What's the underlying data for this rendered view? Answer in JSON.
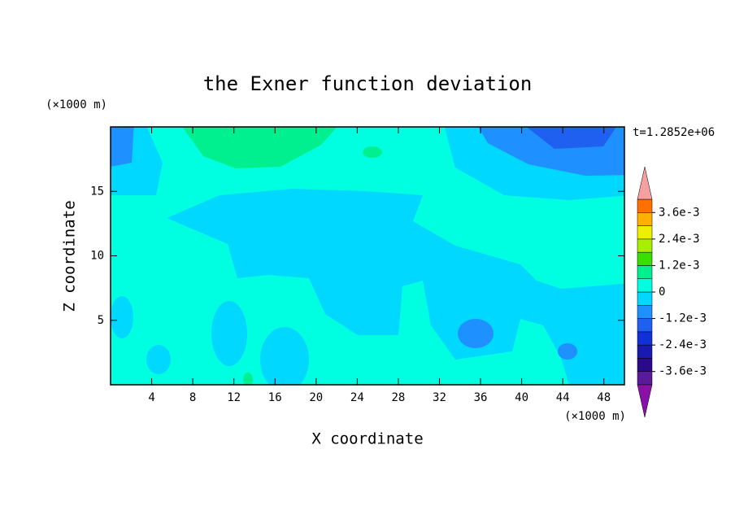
{
  "chart_data": {
    "type": "contour",
    "title": "the Exner function deviation",
    "xlabel": "X coordinate",
    "ylabel": "Z coordinate",
    "xunit": "(×1000 m)",
    "yunit": "(×1000 m)",
    "annotation": "t=1.2852e+06",
    "xlim": [
      0,
      50
    ],
    "ylim": [
      0,
      20
    ],
    "xticks": [
      4,
      8,
      12,
      16,
      20,
      24,
      28,
      32,
      36,
      40,
      44,
      48
    ],
    "yticks": [
      5,
      10,
      15
    ],
    "colorbar": {
      "levels": [
        -0.0042,
        -0.0036,
        -0.003,
        -0.0024,
        -0.0018,
        -0.0012,
        -0.0006,
        0,
        0.0006,
        0.0012,
        0.0018,
        0.0024,
        0.003,
        0.0036,
        0.0042
      ],
      "colors": [
        "#5a1a9a",
        "#2a0a8a",
        "#1a1ab0",
        "#1030d8",
        "#2060f0",
        "#1e90ff",
        "#00d8ff",
        "#00ffe0",
        "#00f090",
        "#38e000",
        "#a8ee00",
        "#eef000",
        "#ffb000",
        "#ff7000",
        "#ff2a10"
      ],
      "extend_colors": [
        "#8a10a8",
        "#f4a0a0"
      ],
      "ticks": [
        {
          "value": 0.0036,
          "label": "3.6e-3"
        },
        {
          "value": 0.0024,
          "label": "2.4e-3"
        },
        {
          "value": 0.0012,
          "label": "1.2e-3"
        },
        0,
        {
          "value": -0.0012,
          "label": "-1.2e-3"
        },
        {
          "value": -0.0024,
          "label": "-2.4e-3"
        },
        {
          "value": -0.0036,
          "label": "-3.6e-3"
        }
      ]
    }
  }
}
